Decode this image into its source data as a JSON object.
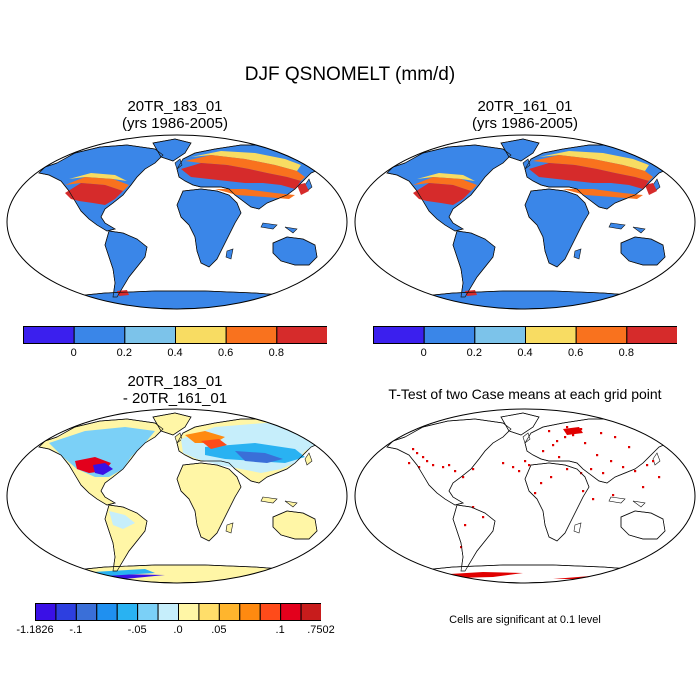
{
  "title": "DJF QSNOMELT (mm/d)",
  "panels": [
    {
      "title_line1": "20TR_183_01",
      "title_line2": "(yrs 1986-2005)"
    },
    {
      "title_line1": "20TR_161_01",
      "title_line2": "(yrs 1986-2005)"
    },
    {
      "title_line1": "20TR_183_01",
      "title_line2": "- 20TR_161_01"
    },
    {
      "title_line1": "T-Test of two Case means at each grid point",
      "title_line2": ""
    }
  ],
  "colorbar_main": {
    "colors": [
      "#3b1fee",
      "#3a86e8",
      "#7cc3ea",
      "#f8dc62",
      "#f9721e",
      "#d62b2b"
    ],
    "labels": [
      "0",
      "0.2",
      "0.4",
      "0.6",
      "0.8"
    ]
  },
  "colorbar_diff": {
    "colors": [
      "#3a10e6",
      "#2d3fe0",
      "#3a6fd8",
      "#1f90f0",
      "#29b2f2",
      "#7bd0f7",
      "#c6eefb",
      "#fff6a6",
      "#ffde6a",
      "#ffb52d",
      "#ff8a10",
      "#ff4b1a",
      "#e3001c",
      "#c81c1c"
    ],
    "labels": [
      "-1.1826",
      "-.1",
      "-.05",
      ".0",
      ".05",
      ".1",
      ".7502"
    ]
  },
  "significance_note": "Cells are significant at 0.1 level",
  "colors": {
    "ocean": "#ffffff",
    "land_main": "#3a86e8",
    "land_diff": "#fff6a6",
    "significant": "#e00000"
  }
}
